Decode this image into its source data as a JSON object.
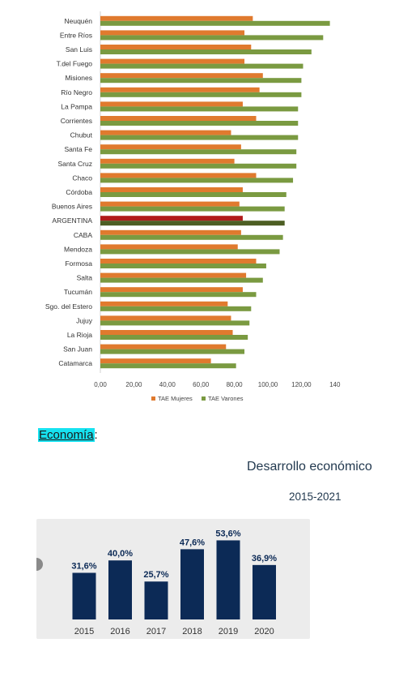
{
  "chart_data": [
    {
      "type": "bar",
      "orientation": "horizontal",
      "categories": [
        "Neuquén",
        "Entre Ríos",
        "San Luis",
        "T.del Fuego",
        "Misiones",
        "Río Negro",
        "La Pampa",
        "Corrientes",
        "Chubut",
        "Santa Fe",
        "Santa Cruz",
        "Chaco",
        "Córdoba",
        "Buenos Aires",
        "ARGENTINA",
        "CABA",
        "Mendoza",
        "Formosa",
        "Salta",
        "Tucumán",
        "Sgo. del Estero",
        "Jujuy",
        "La Rioja",
        "San Juan",
        "Catamarca"
      ],
      "series": [
        {
          "name": "TAE Mujeres",
          "color": "#e07a2e",
          "values": [
            91,
            86,
            90,
            86,
            97,
            95,
            85,
            93,
            78,
            84,
            80,
            93,
            85,
            83,
            85,
            84,
            82,
            93,
            87,
            85,
            76,
            78,
            79,
            75,
            66
          ]
        },
        {
          "name": "TAE Varones",
          "color": "#7a9a41",
          "values": [
            137,
            133,
            126,
            121,
            120,
            120,
            118,
            118,
            118,
            117,
            117,
            115,
            111,
            110,
            110,
            109,
            107,
            99,
            97,
            93,
            90,
            89,
            88,
            86,
            81
          ]
        }
      ],
      "highlight": {
        "category": "ARGENTINA",
        "colors": [
          "#b01a1a",
          "#4d5e23"
        ]
      },
      "x_ticks": [
        "0,00",
        "20,00",
        "40,00",
        "60,00",
        "80,00",
        "100,00",
        "120,00",
        "140"
      ],
      "xlim": [
        0,
        140
      ],
      "legend": "bottom",
      "grid": false
    },
    {
      "type": "bar",
      "categories": [
        "2015",
        "2016",
        "2017",
        "2018",
        "2019",
        "2020"
      ],
      "values": [
        31.6,
        40.0,
        25.7,
        47.6,
        53.6,
        36.9
      ],
      "value_labels": [
        "31,6%",
        "40,0%",
        "25,7%",
        "47,6%",
        "53,6%",
        "36,9%"
      ],
      "color": "#0c2a56",
      "background": "#ececec",
      "grid": false
    }
  ],
  "section": {
    "label": "Economía",
    "suffix": ":"
  },
  "development": {
    "title": "Desarrollo económico",
    "subtitle": "2015-2021"
  }
}
